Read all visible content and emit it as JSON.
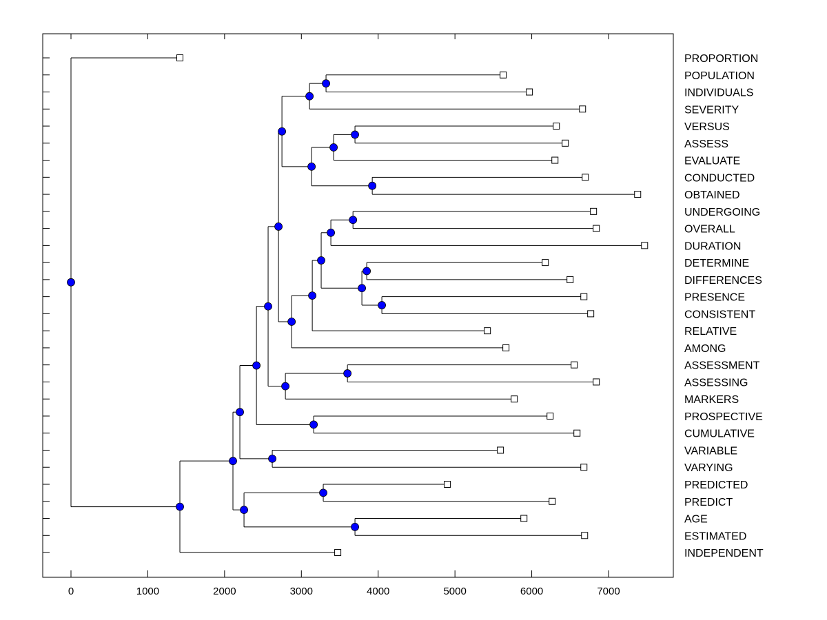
{
  "chart_data": {
    "type": "dendrogram",
    "title": "",
    "xlabel": "",
    "ylabel": "",
    "xlim": [
      -370,
      7850
    ],
    "xticks": [
      "0",
      "1000",
      "2000",
      "3000",
      "4000",
      "5000",
      "6000",
      "7000"
    ],
    "xtick_values": [
      0,
      1000,
      2000,
      3000,
      4000,
      5000,
      6000,
      7000
    ],
    "grid": false,
    "colors": {
      "node": "#0000ff",
      "line": "#000000",
      "leaf": "#ffffff"
    },
    "tree": {
      "value": 0,
      "children": [
        {
          "label": "PROPORTION",
          "value": 1418
        },
        {
          "value": 1418,
          "children": [
            {
              "value": 2109,
              "children": [
                {
                  "value": 2199,
                  "children": [
                    {
                      "value": 2415,
                      "children": [
                        {
                          "value": 2567,
                          "children": [
                            {
                              "value": 2702,
                              "children": [
                                {
                                  "value": 2747,
                                  "children": [
                                    {
                                      "value": 3106,
                                      "children": [
                                        {
                                          "value": 3321,
                                          "children": [
                                            {
                                              "label": "POPULATION",
                                              "value": 5628
                                            },
                                            {
                                              "label": "INDIVIDUALS",
                                              "value": 5969
                                            }
                                          ]
                                        },
                                        {
                                          "label": "SEVERITY",
                                          "value": 6661
                                        }
                                      ]
                                    },
                                    {
                                      "value": 3133,
                                      "children": [
                                        {
                                          "value": 3420,
                                          "children": [
                                            {
                                              "value": 3698,
                                              "children": [
                                                {
                                                  "label": "VERSUS",
                                                  "value": 6320
                                                },
                                                {
                                                  "label": "ASSESS",
                                                  "value": 6436
                                                }
                                              ]
                                            },
                                            {
                                              "label": "EVALUATE",
                                              "value": 6302
                                            }
                                          ]
                                        },
                                        {
                                          "value": 3923,
                                          "children": [
                                            {
                                              "label": "CONDUCTED",
                                              "value": 6697
                                            },
                                            {
                                              "label": "OBTAINED",
                                              "value": 7379
                                            }
                                          ]
                                        }
                                      ]
                                    }
                                  ]
                                },
                                {
                                  "value": 2873,
                                  "children": [
                                    {
                                      "value": 3142,
                                      "children": [
                                        {
                                          "value": 3258,
                                          "children": [
                                            {
                                              "value": 3384,
                                              "children": [
                                                {
                                                  "value": 3672,
                                                  "children": [
                                                    {
                                                      "label": "UNDERGOING",
                                                      "value": 6804
                                                    },
                                                    {
                                                      "label": "OVERALL",
                                                      "value": 6840
                                                    }
                                                  ]
                                                },
                                                {
                                                  "label": "DURATION",
                                                  "value": 7469
                                                }
                                              ]
                                            },
                                            {
                                              "value": 3788,
                                              "children": [
                                                {
                                                  "value": 3851,
                                                  "children": [
                                                    {
                                                      "label": "DETERMINE",
                                                      "value": 6176
                                                    },
                                                    {
                                                      "label": "DIFFERENCES",
                                                      "value": 6499
                                                    }
                                                  ]
                                                },
                                                {
                                                  "value": 4048,
                                                  "children": [
                                                    {
                                                      "label": "PRESENCE",
                                                      "value": 6679
                                                    },
                                                    {
                                                      "label": "CONSISTENT",
                                                      "value": 6768
                                                    }
                                                  ]
                                                }
                                              ]
                                            }
                                          ]
                                        },
                                        {
                                          "label": "RELATIVE",
                                          "value": 5422
                                        }
                                      ]
                                    },
                                    {
                                      "label": "AMONG",
                                      "value": 5664
                                    }
                                  ]
                                }
                              ]
                            },
                            {
                              "value": 2792,
                              "children": [
                                {
                                  "value": 3600,
                                  "children": [
                                    {
                                      "label": "ASSESSMENT",
                                      "value": 6553
                                    },
                                    {
                                      "label": "ASSESSING",
                                      "value": 6840
                                    }
                                  ]
                                },
                                {
                                  "label": "MARKERS",
                                  "value": 5772
                                }
                              ]
                            }
                          ]
                        },
                        {
                          "value": 3160,
                          "children": [
                            {
                              "label": "PROSPECTIVE",
                              "value": 6239
                            },
                            {
                              "label": "CUMULATIVE",
                              "value": 6589
                            }
                          ]
                        }
                      ]
                    },
                    {
                      "value": 2621,
                      "children": [
                        {
                          "label": "VARIABLE",
                          "value": 5592
                        },
                        {
                          "label": "VARYING",
                          "value": 6679
                        }
                      ]
                    }
                  ]
                },
                {
                  "value": 2253,
                  "children": [
                    {
                      "value": 3285,
                      "children": [
                        {
                          "label": "PREDICTED",
                          "value": 4901
                        },
                        {
                          "label": "PREDICT",
                          "value": 6266
                        }
                      ]
                    },
                    {
                      "value": 3698,
                      "children": [
                        {
                          "label": "AGE",
                          "value": 5898
                        },
                        {
                          "label": "ESTIMATED",
                          "value": 6688
                        }
                      ]
                    }
                  ]
                }
              ]
            },
            {
              "label": "INDEPENDENT",
              "value": 3474
            }
          ]
        }
      ]
    }
  }
}
